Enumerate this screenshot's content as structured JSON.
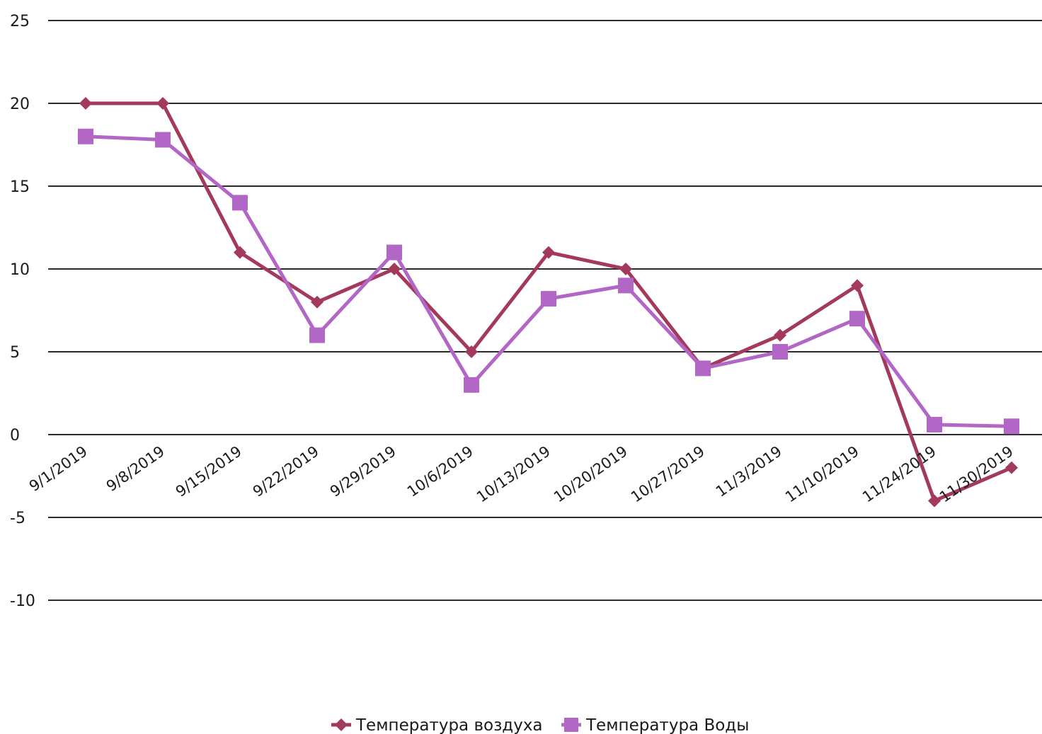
{
  "chart_data": {
    "type": "line",
    "categories": [
      "9/1/2019",
      "9/8/2019",
      "9/15/2019",
      "9/22/2019",
      "9/29/2019",
      "10/6/2019",
      "10/13/2019",
      "10/20/2019",
      "10/27/2019",
      "11/3/2019",
      "11/10/2019",
      "11/24/2019",
      "11/30/2019"
    ],
    "series": [
      {
        "name": "Температура воздуха",
        "color": "#a33a5c",
        "marker": "diamond",
        "values": [
          20,
          20,
          11,
          8,
          10,
          5,
          11,
          10,
          4,
          6,
          9,
          -4,
          -2
        ]
      },
      {
        "name": "Температура Воды",
        "color": "#b266c6",
        "marker": "square",
        "values": [
          18,
          17.8,
          14,
          6,
          11,
          3,
          8.2,
          9,
          4,
          5,
          7,
          0.6,
          0.5
        ]
      }
    ],
    "ylim": [
      -10,
      25
    ],
    "yticks": [
      -10,
      -5,
      0,
      5,
      10,
      15,
      20,
      25
    ],
    "grid": true,
    "legend": "bottom",
    "title": "",
    "xlabel": "",
    "ylabel": ""
  }
}
